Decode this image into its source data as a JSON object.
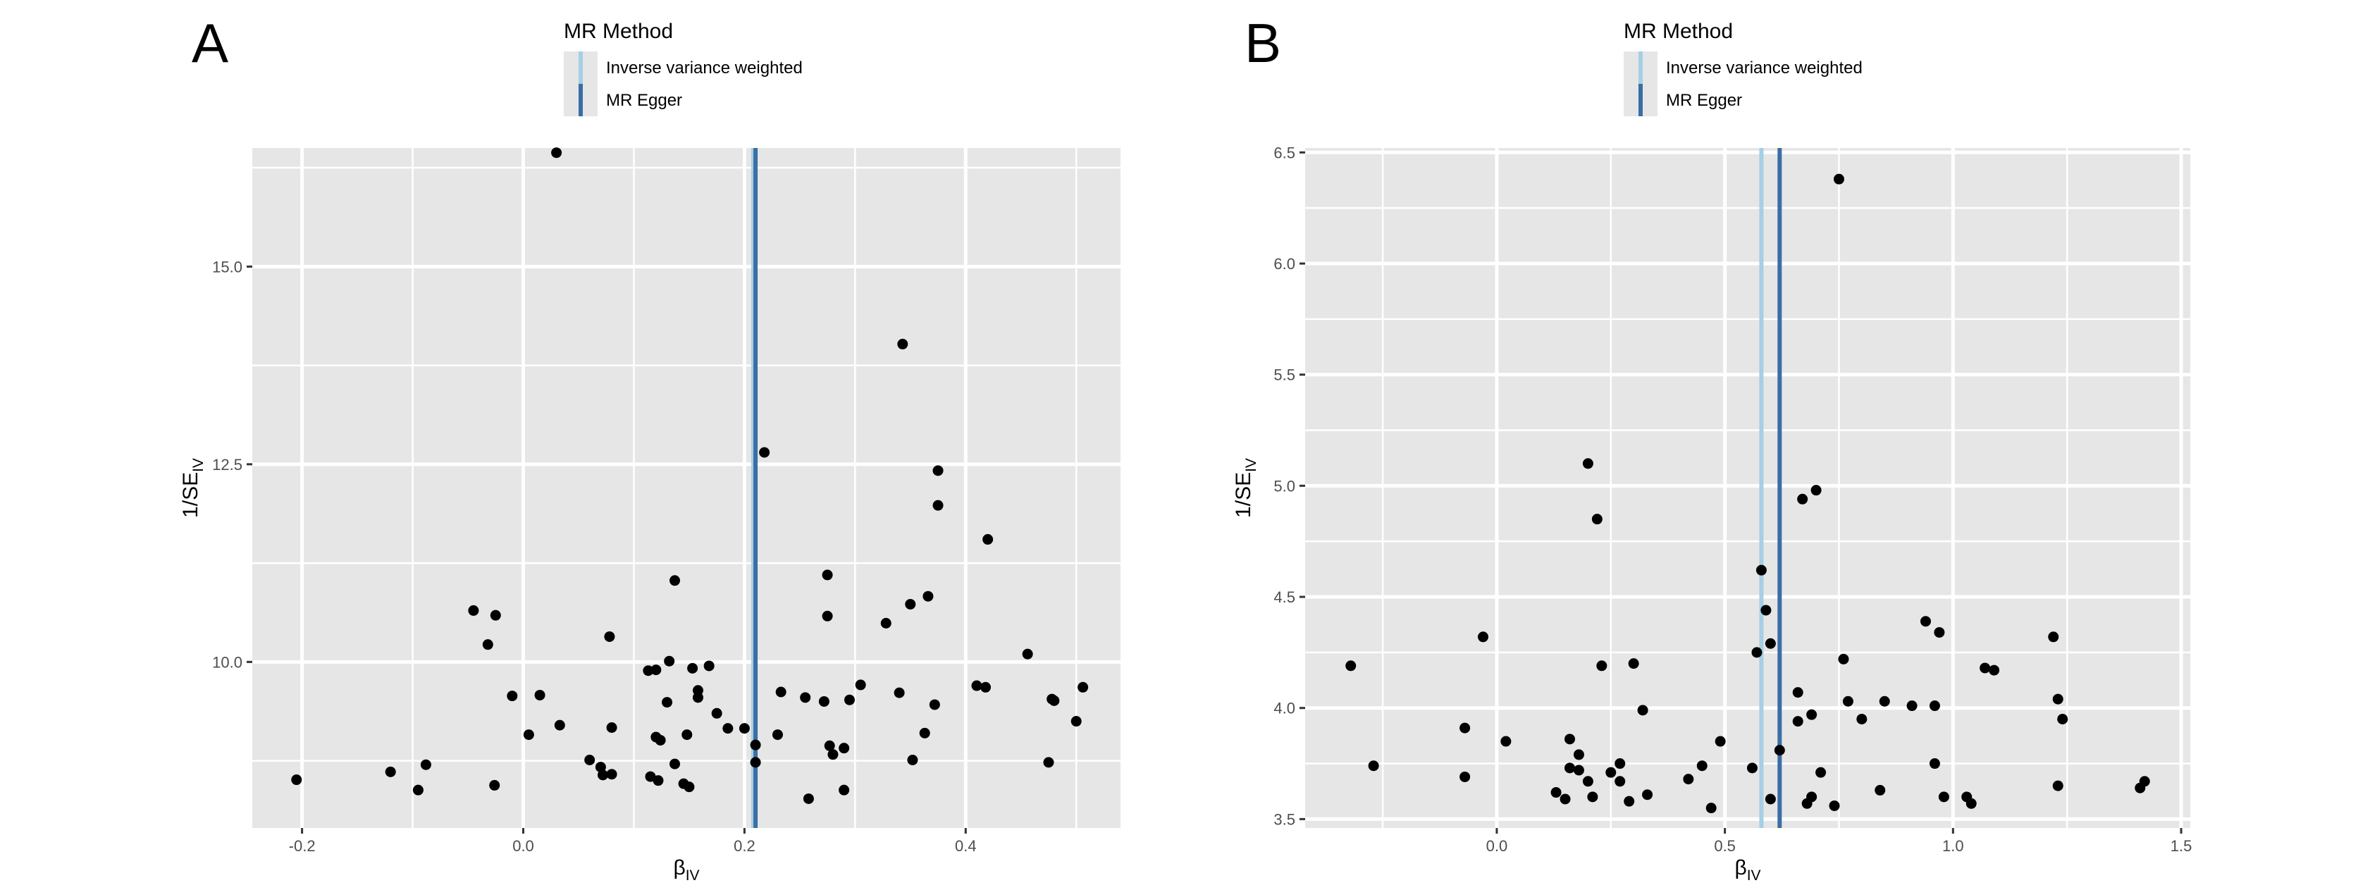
{
  "chart_data": [
    {
      "type": "scatter",
      "panel_label": "A",
      "legend": {
        "title": "MR Method",
        "entries": [
          {
            "label": "Inverse variance weighted",
            "color": "#a6cfe3",
            "x_intercept": 0.208
          },
          {
            "label": "MR Egger",
            "color": "#3a6ea5",
            "x_intercept": 0.21
          }
        ]
      },
      "xlabel": {
        "main": "β",
        "sub": "IV"
      },
      "ylabel": {
        "main": "1/SE",
        "sub": "IV"
      },
      "xlim": [
        -0.245,
        0.54
      ],
      "ylim": [
        7.9,
        16.5
      ],
      "xticks": [
        -0.2,
        0.0,
        0.2,
        0.4
      ],
      "xtick_labels": [
        "-0.2",
        "0.0",
        "0.2",
        "0.4"
      ],
      "yticks": [
        10.0,
        12.5,
        15.0
      ],
      "ytick_labels": [
        "10.0",
        "12.5",
        "15.0"
      ],
      "grid": true,
      "points": [
        [
          0.03,
          16.44
        ],
        [
          -0.205,
          8.51
        ],
        [
          -0.12,
          8.61
        ],
        [
          -0.095,
          8.38
        ],
        [
          -0.088,
          8.7
        ],
        [
          -0.045,
          10.65
        ],
        [
          -0.032,
          10.22
        ],
        [
          -0.025,
          10.59
        ],
        [
          -0.026,
          8.44
        ],
        [
          -0.01,
          9.57
        ],
        [
          0.005,
          9.08
        ],
        [
          0.015,
          9.58
        ],
        [
          0.033,
          9.2
        ],
        [
          0.06,
          8.76
        ],
        [
          0.07,
          8.67
        ],
        [
          0.072,
          8.57
        ],
        [
          0.078,
          10.32
        ],
        [
          0.08,
          9.17
        ],
        [
          0.08,
          8.58
        ],
        [
          0.113,
          9.89
        ],
        [
          0.12,
          9.05
        ],
        [
          0.12,
          9.9
        ],
        [
          0.115,
          8.55
        ],
        [
          0.122,
          8.5
        ],
        [
          0.124,
          9.01
        ],
        [
          0.13,
          9.49
        ],
        [
          0.132,
          10.01
        ],
        [
          0.137,
          8.71
        ],
        [
          0.137,
          11.03
        ],
        [
          0.145,
          8.46
        ],
        [
          0.148,
          9.08
        ],
        [
          0.15,
          8.42
        ],
        [
          0.153,
          9.92
        ],
        [
          0.158,
          9.55
        ],
        [
          0.158,
          9.64
        ],
        [
          0.168,
          9.95
        ],
        [
          0.175,
          9.35
        ],
        [
          0.185,
          9.16
        ],
        [
          0.2,
          9.16
        ],
        [
          0.21,
          8.95
        ],
        [
          0.21,
          8.73
        ],
        [
          0.218,
          12.65
        ],
        [
          0.23,
          9.08
        ],
        [
          0.233,
          9.62
        ],
        [
          0.255,
          9.55
        ],
        [
          0.258,
          8.27
        ],
        [
          0.272,
          9.5
        ],
        [
          0.275,
          11.1
        ],
        [
          0.275,
          10.58
        ],
        [
          0.277,
          8.94
        ],
        [
          0.28,
          8.83
        ],
        [
          0.29,
          8.91
        ],
        [
          0.29,
          8.38
        ],
        [
          0.295,
          9.52
        ],
        [
          0.305,
          9.71
        ],
        [
          0.328,
          10.49
        ],
        [
          0.34,
          9.61
        ],
        [
          0.343,
          14.02
        ],
        [
          0.35,
          10.73
        ],
        [
          0.352,
          8.76
        ],
        [
          0.363,
          9.1
        ],
        [
          0.366,
          10.83
        ],
        [
          0.372,
          9.46
        ],
        [
          0.375,
          11.98
        ],
        [
          0.375,
          12.42
        ],
        [
          0.41,
          9.7
        ],
        [
          0.418,
          9.68
        ],
        [
          0.42,
          11.55
        ],
        [
          0.456,
          10.1
        ],
        [
          0.475,
          8.73
        ],
        [
          0.478,
          9.53
        ],
        [
          0.48,
          9.51
        ],
        [
          0.5,
          9.25
        ],
        [
          0.506,
          9.68
        ]
      ]
    },
    {
      "type": "scatter",
      "panel_label": "B",
      "legend": {
        "title": "MR Method",
        "entries": [
          {
            "label": "Inverse variance weighted",
            "color": "#a6cfe3",
            "x_intercept": 0.58
          },
          {
            "label": "MR Egger",
            "color": "#3a6ea5",
            "x_intercept": 0.62
          }
        ]
      },
      "xlabel": {
        "main": "β",
        "sub": "IV"
      },
      "ylabel": {
        "main": "1/SE",
        "sub": "IV"
      },
      "xlim": [
        -0.42,
        1.52
      ],
      "ylim": [
        3.46,
        6.52
      ],
      "xticks": [
        0.0,
        0.5,
        1.0,
        1.5
      ],
      "xtick_labels": [
        "0.0",
        "0.5",
        "1.0",
        "1.5"
      ],
      "yticks": [
        3.5,
        4.0,
        4.5,
        5.0,
        5.5,
        6.0,
        6.5
      ],
      "ytick_labels": [
        "3.5",
        "4.0",
        "4.5",
        "5.0",
        "5.5",
        "6.0",
        "6.5"
      ],
      "grid": true,
      "points": [
        [
          -0.32,
          4.19
        ],
        [
          -0.27,
          3.74
        ],
        [
          -0.07,
          3.91
        ],
        [
          -0.07,
          3.69
        ],
        [
          -0.03,
          4.32
        ],
        [
          0.02,
          3.85
        ],
        [
          0.13,
          3.62
        ],
        [
          0.15,
          3.59
        ],
        [
          0.16,
          3.86
        ],
        [
          0.16,
          3.73
        ],
        [
          0.18,
          3.79
        ],
        [
          0.18,
          3.72
        ],
        [
          0.2,
          3.67
        ],
        [
          0.21,
          3.6
        ],
        [
          0.2,
          5.1
        ],
        [
          0.22,
          4.85
        ],
        [
          0.23,
          4.19
        ],
        [
          0.25,
          3.71
        ],
        [
          0.27,
          3.75
        ],
        [
          0.27,
          3.67
        ],
        [
          0.29,
          3.58
        ],
        [
          0.3,
          4.2
        ],
        [
          0.32,
          3.99
        ],
        [
          0.33,
          3.61
        ],
        [
          0.42,
          3.68
        ],
        [
          0.45,
          3.74
        ],
        [
          0.47,
          3.55
        ],
        [
          0.49,
          3.85
        ],
        [
          0.56,
          3.73
        ],
        [
          0.57,
          4.25
        ],
        [
          0.58,
          4.62
        ],
        [
          0.59,
          4.44
        ],
        [
          0.6,
          4.29
        ],
        [
          0.6,
          3.59
        ],
        [
          0.62,
          3.81
        ],
        [
          0.66,
          3.94
        ],
        [
          0.66,
          4.07
        ],
        [
          0.67,
          4.94
        ],
        [
          0.68,
          3.57
        ],
        [
          0.69,
          3.6
        ],
        [
          0.69,
          3.97
        ],
        [
          0.7,
          4.98
        ],
        [
          0.71,
          3.71
        ],
        [
          0.74,
          3.56
        ],
        [
          0.75,
          6.38
        ],
        [
          0.76,
          4.22
        ],
        [
          0.77,
          4.03
        ],
        [
          0.8,
          3.95
        ],
        [
          0.84,
          3.63
        ],
        [
          0.85,
          4.03
        ],
        [
          0.91,
          4.01
        ],
        [
          0.94,
          4.39
        ],
        [
          0.96,
          4.01
        ],
        [
          0.96,
          3.75
        ],
        [
          0.97,
          4.34
        ],
        [
          0.98,
          3.6
        ],
        [
          1.03,
          3.6
        ],
        [
          1.04,
          3.57
        ],
        [
          1.07,
          4.18
        ],
        [
          1.09,
          4.17
        ],
        [
          1.22,
          4.32
        ],
        [
          1.23,
          4.04
        ],
        [
          1.23,
          3.65
        ],
        [
          1.24,
          3.95
        ],
        [
          1.41,
          3.64
        ],
        [
          1.42,
          3.67
        ]
      ]
    }
  ]
}
